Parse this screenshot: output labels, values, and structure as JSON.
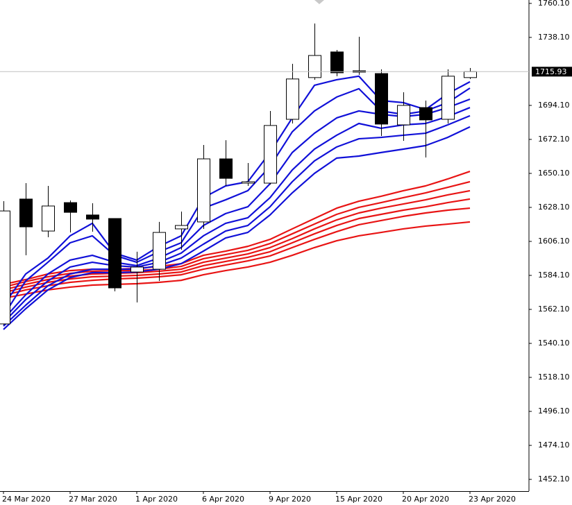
{
  "chart_data": {
    "type": "candlestick",
    "categories": [
      "24 Mar 2020",
      null,
      null,
      "27 Mar 2020",
      null,
      null,
      "1 Apr 2020",
      null,
      null,
      "6 Apr 2020",
      null,
      null,
      "9 Apr 2020",
      null,
      null,
      "15 Apr 2020",
      null,
      null,
      "20 Apr 2020",
      null,
      null,
      "23 Apr 2020"
    ],
    "open": [
      1552.7,
      1633.5,
      1612.8,
      1631.2,
      1623.2,
      1620.9,
      1586.3,
      1588.1,
      1614.2,
      1618.7,
      1659.5,
      1643.8,
      1643.8,
      1685.1,
      1712.1,
      1728.7,
      1716.5,
      1714.7,
      1681.5,
      1692.7,
      1685.1,
      1712.1
    ],
    "high": [
      1632.1,
      1643.8,
      1642.0,
      1632.6,
      1630.8,
      1621.0,
      1599.4,
      1618.7,
      1625.4,
      1668.5,
      1671.6,
      1656.8,
      1690.5,
      1721.0,
      1747.1,
      1730.0,
      1738.5,
      1717.4,
      1702.6,
      1697.2,
      1717.4,
      1718.3
    ],
    "low": [
      1552.0,
      1597.1,
      1608.8,
      1611.9,
      1612.4,
      1573.8,
      1566.6,
      1580.5,
      1600.7,
      1614.2,
      1642.0,
      1642.0,
      1642.9,
      1682.4,
      1710.7,
      1713.0,
      1713.9,
      1674.3,
      1671.2,
      1660.4,
      1682.4,
      1711.2
    ],
    "close": [
      1625.8,
      1615.5,
      1629.0,
      1624.9,
      1620.5,
      1576.0,
      1589.5,
      1611.9,
      1616.4,
      1659.5,
      1646.9,
      1644.7,
      1681.1,
      1711.2,
      1726.4,
      1715.2,
      1715.6,
      1682.0,
      1694.1,
      1684.7,
      1713.0,
      1715.93
    ],
    "up_color": "#ffffff",
    "down_color": "#000000",
    "wick_color": "#000000",
    "series": [
      {
        "color": "#1010d8",
        "values": [
          1564.8,
          1585.0,
          1595.3,
          1609.7,
          1617.8,
          1598.5,
          1594.0,
          1602.9,
          1609.7,
          1634.4,
          1642.0,
          1644.7,
          1663.6,
          1686.0,
          1707.1,
          1710.7,
          1713.0,
          1697.2,
          1695.9,
          1691.4,
          1701.7,
          1709.4
        ]
      },
      {
        "color": "#1010d8",
        "values": [
          1558.0,
          1580.5,
          1592.6,
          1605.2,
          1609.7,
          1597.1,
          1592.6,
          1599.4,
          1605.2,
          1627.6,
          1633.0,
          1638.9,
          1654.6,
          1677.0,
          1690.5,
          1699.5,
          1704.9,
          1690.5,
          1688.3,
          1690.5,
          1695.9,
          1705.3
        ]
      },
      {
        "color": "#1010d8",
        "values": [
          1555.8,
          1571.5,
          1585.0,
          1594.0,
          1597.1,
          1592.6,
          1590.4,
          1595.3,
          1602.1,
          1616.4,
          1624.1,
          1628.5,
          1643.4,
          1663.6,
          1676.1,
          1686.0,
          1690.5,
          1688.3,
          1686.9,
          1688.3,
          1692.7,
          1698.1
        ]
      },
      {
        "color": "#1010d8",
        "values": [
          1553.6,
          1568.4,
          1580.5,
          1589.5,
          1592.6,
          1590.4,
          1589.5,
          1592.6,
          1598.5,
          1609.7,
          1617.8,
          1621.4,
          1634.4,
          1652.3,
          1665.8,
          1674.8,
          1682.4,
          1679.3,
          1681.5,
          1682.4,
          1686.9,
          1692.7
        ]
      },
      {
        "color": "#1010d8",
        "values": [
          1551.3,
          1564.8,
          1577.4,
          1585.0,
          1588.1,
          1588.1,
          1588.1,
          1590.4,
          1595.3,
          1604.3,
          1612.8,
          1616.4,
          1628.5,
          1644.7,
          1658.2,
          1667.2,
          1672.5,
          1673.4,
          1674.8,
          1676.1,
          1681.5,
          1687.4
        ]
      },
      {
        "color": "#1010d8",
        "values": [
          1549.1,
          1562.5,
          1574.7,
          1582.7,
          1585.9,
          1585.9,
          1586.3,
          1588.1,
          1591.7,
          1599.8,
          1608.3,
          1611.9,
          1623.2,
          1637.5,
          1650.1,
          1660.0,
          1661.3,
          1663.6,
          1665.8,
          1668.1,
          1673.4,
          1680.2
        ]
      },
      {
        "color": "#e81414",
        "values": [
          1578.3,
          1581.4,
          1585.0,
          1587.2,
          1588.1,
          1588.1,
          1588.6,
          1589.9,
          1591.7,
          1597.1,
          1599.8,
          1602.9,
          1607.4,
          1614.2,
          1620.9,
          1627.6,
          1632.1,
          1635.3,
          1638.9,
          1642.0,
          1646.5,
          1651.4
        ]
      },
      {
        "color": "#e81414",
        "values": [
          1576.5,
          1580.1,
          1583.2,
          1585.4,
          1586.8,
          1587.2,
          1587.2,
          1588.1,
          1589.9,
          1594.9,
          1597.6,
          1600.3,
          1604.7,
          1611.0,
          1617.3,
          1623.6,
          1628.1,
          1631.2,
          1634.4,
          1637.5,
          1641.1,
          1644.7
        ]
      },
      {
        "color": "#e81414",
        "values": [
          1574.7,
          1578.3,
          1581.4,
          1583.6,
          1585.0,
          1585.4,
          1585.9,
          1586.8,
          1588.1,
          1592.6,
          1595.3,
          1598.0,
          1602.1,
          1607.9,
          1614.2,
          1620.0,
          1624.5,
          1627.6,
          1630.3,
          1633.0,
          1636.2,
          1638.9
        ]
      },
      {
        "color": "#e81414",
        "values": [
          1572.9,
          1576.5,
          1579.6,
          1581.8,
          1583.2,
          1583.6,
          1584.1,
          1585.0,
          1586.3,
          1590.4,
          1593.1,
          1595.8,
          1599.4,
          1605.2,
          1611.0,
          1616.4,
          1620.9,
          1623.6,
          1626.3,
          1628.5,
          1631.2,
          1633.5
        ]
      },
      {
        "color": "#e81414",
        "values": [
          1571.1,
          1574.7,
          1577.4,
          1579.6,
          1580.9,
          1581.8,
          1582.3,
          1583.2,
          1584.5,
          1588.1,
          1590.8,
          1593.5,
          1596.7,
          1602.1,
          1607.4,
          1612.4,
          1616.9,
          1619.6,
          1622.3,
          1624.5,
          1626.3,
          1627.6
        ]
      },
      {
        "color": "#e81414",
        "values": [
          1569.3,
          1572.0,
          1574.7,
          1576.5,
          1577.8,
          1578.3,
          1578.7,
          1579.6,
          1580.9,
          1584.5,
          1587.2,
          1589.5,
          1592.6,
          1597.1,
          1602.1,
          1606.5,
          1609.7,
          1611.9,
          1614.2,
          1616.0,
          1617.3,
          1618.7
        ]
      }
    ],
    "last_price": 1715.93,
    "ylim": [
      1444.5,
      1762.3
    ],
    "yticks": [
      {
        "value": 1760.1,
        "label": "1760.10"
      },
      {
        "value": 1738.1,
        "label": "1738.10"
      },
      {
        "value": 1694.1,
        "label": "1694.10"
      },
      {
        "value": 1672.1,
        "label": "1672.10"
      },
      {
        "value": 1650.1,
        "label": "1650.10"
      },
      {
        "value": 1628.1,
        "label": "1628.10"
      },
      {
        "value": 1606.1,
        "label": "1606.10"
      },
      {
        "value": 1584.1,
        "label": "1584.10"
      },
      {
        "value": 1562.1,
        "label": "1562.10"
      },
      {
        "value": 1540.1,
        "label": "1540.10"
      },
      {
        "value": 1518.1,
        "label": "1518.10"
      },
      {
        "value": 1496.1,
        "label": "1496.10"
      },
      {
        "value": 1474.1,
        "label": "1474.10"
      },
      {
        "value": 1452.1,
        "label": "1452.10"
      }
    ],
    "grid": false
  }
}
